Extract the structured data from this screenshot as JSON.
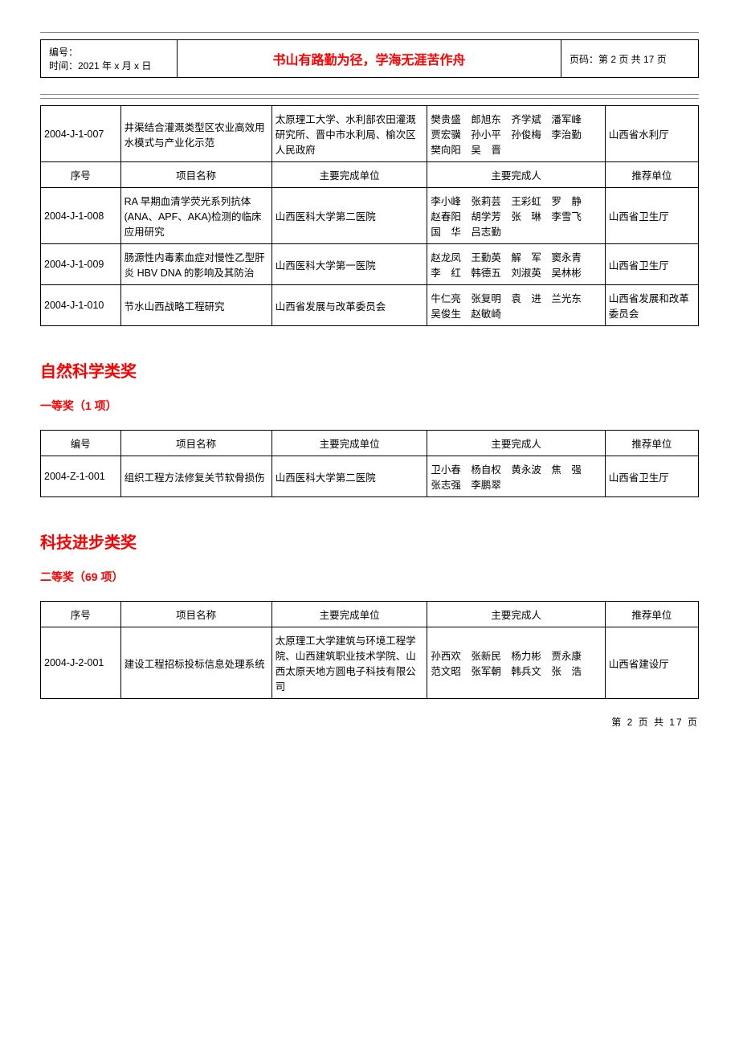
{
  "header": {
    "id_label": "编号：",
    "date_label": "时间：2021 年 x 月 x 日",
    "motto": "书山有路勤为径，学海无涯苦作舟",
    "page_label": "页码：第 2 页 共 17 页"
  },
  "table1": {
    "headers": [
      "序号",
      "项目名称",
      "主要完成单位",
      "主要完成人",
      "推荐单位"
    ],
    "rows": [
      {
        "id": "2004-J-1-007",
        "name": "井渠结合灌溉类型区农业高效用水模式与产业化示范",
        "org": "太原理工大学、水利部农田灌溉研究所、晋中市水利局、榆次区人民政府",
        "people": "樊贵盛　郎旭东　齐学斌　潘军峰　贾宏骥　孙小平　孙俊梅　李治勤　樊向阳　吴　晋",
        "rec": "山西省水利厅"
      }
    ],
    "rows2": [
      {
        "id": "2004-J-1-008",
        "name": "RA 早期血清学荧光系列抗体(ANA、APF、AKA)检测的临床应用研究",
        "org": "山西医科大学第二医院",
        "people": "李小峰　张莉芸　王彩虹　罗　静　赵春阳　胡学芳　张　琳　李雪飞　国　华　吕志勤",
        "rec": "山西省卫生厅"
      },
      {
        "id": "2004-J-1-009",
        "name": "肠源性内毒素血症对慢性乙型肝炎 HBV DNA 的影响及其防治",
        "org": "山西医科大学第一医院",
        "people": "赵龙凤　王勤英　解　军　窦永青　李　红　韩德五　刘淑英　吴林彬",
        "rec": "山西省卫生厅"
      },
      {
        "id": "2004-J-1-010",
        "name": "节水山西战略工程研究",
        "org": "山西省发展与改革委员会",
        "people": "牛仁亮　张复明　袁　进　兰光东　吴俊生　赵敏崎",
        "rec": "山西省发展和改革委员会"
      }
    ]
  },
  "section1": {
    "title": "自然科学类奖",
    "subtitle": "一等奖（1 项）"
  },
  "table2": {
    "headers": [
      "编号",
      "项目名称",
      "主要完成单位",
      "主要完成人",
      "推荐单位"
    ],
    "rows": [
      {
        "id": "2004-Z-1-001",
        "name": "组织工程方法修复关节软骨损伤",
        "org": "山西医科大学第二医院",
        "people": "卫小春　杨自权　黄永波　焦　强　张志强　李鹏翠",
        "rec": "山西省卫生厅"
      }
    ]
  },
  "section2": {
    "title": "科技进步类奖",
    "subtitle": "二等奖（69 项）"
  },
  "table3": {
    "headers": [
      "序号",
      "项目名称",
      "主要完成单位",
      "主要完成人",
      "推荐单位"
    ],
    "rows": [
      {
        "id": "2004-J-2-001",
        "name": "建设工程招标投标信息处理系统",
        "org": "太原理工大学建筑与环境工程学院、山西建筑职业技术学院、山西太原天地方圆电子科技有限公司",
        "people": "孙西欢　张新民　杨力彬　贾永康　范文昭　张军朝　韩兵文　张　浩",
        "rec": "山西省建设厅"
      }
    ]
  },
  "footer": "第 2 页 共 17 页"
}
